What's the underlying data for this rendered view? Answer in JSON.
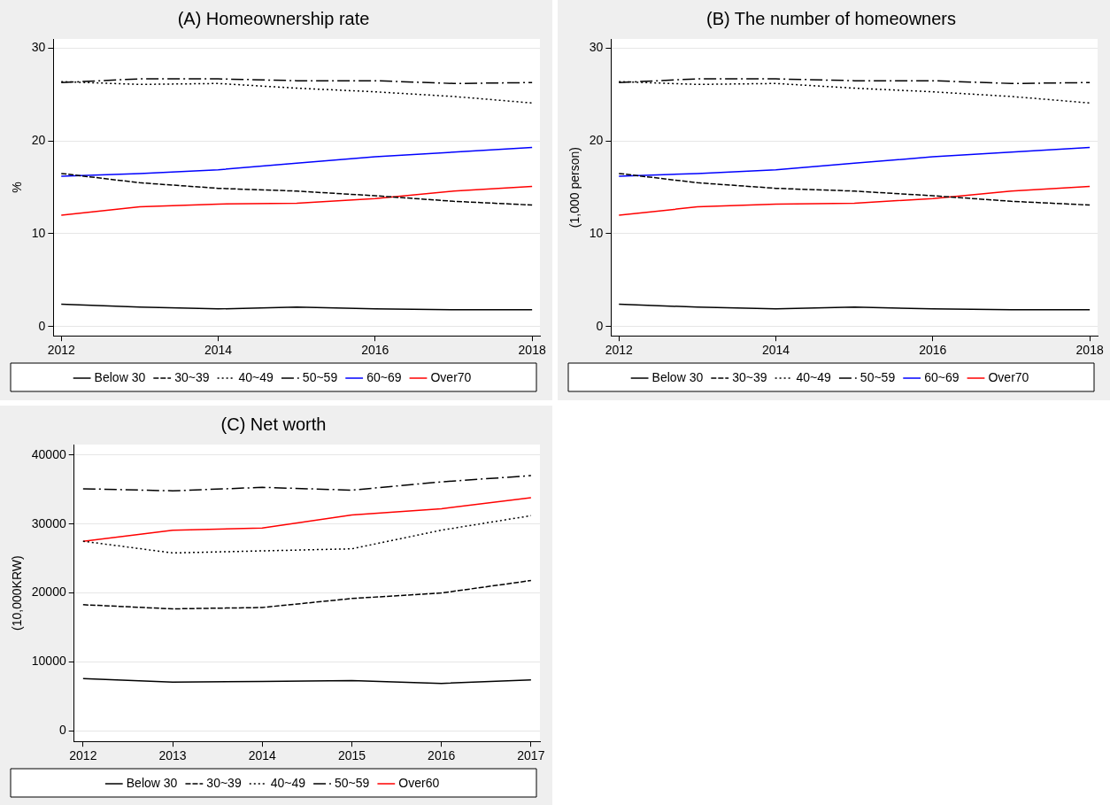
{
  "chart_data": [
    {
      "type": "line",
      "title": "(A) Homeownership rate",
      "ylabel": "%",
      "x": [
        2012,
        2013,
        2014,
        2015,
        2016,
        2017,
        2018
      ],
      "xlim": [
        2011.9,
        2018.1
      ],
      "xticks": [
        2012,
        2014,
        2016,
        2018
      ],
      "ylim": [
        -1,
        31
      ],
      "yticks": [
        0,
        10,
        20,
        30
      ],
      "grid": "y",
      "legend": "bottom",
      "marker": "none",
      "series": [
        {
          "name": "Below 30",
          "color": "#000000",
          "line_style": "solid",
          "values": [
            2.4,
            2.1,
            1.9,
            2.1,
            1.9,
            1.8,
            1.8
          ]
        },
        {
          "name": "30~39",
          "color": "#000000",
          "line_style": "dashed",
          "values": [
            16.5,
            15.5,
            14.9,
            14.6,
            14.1,
            13.5,
            13.1
          ]
        },
        {
          "name": "40~49",
          "color": "#000000",
          "line_style": "dotted",
          "values": [
            26.4,
            26.1,
            26.2,
            25.7,
            25.3,
            24.8,
            24.1
          ]
        },
        {
          "name": "50~59",
          "color": "#000000",
          "line_style": "dashdot",
          "values": [
            26.3,
            26.7,
            26.7,
            26.5,
            26.5,
            26.2,
            26.3
          ]
        },
        {
          "name": "60~69",
          "color": "#0000ff",
          "line_style": "solid",
          "values": [
            16.2,
            16.5,
            16.9,
            17.6,
            18.3,
            18.8,
            19.3
          ]
        },
        {
          "name": "Over70",
          "color": "#ff0000",
          "line_style": "solid",
          "values": [
            12.0,
            12.9,
            13.2,
            13.3,
            13.8,
            14.6,
            15.1
          ]
        }
      ]
    },
    {
      "type": "line",
      "title": "(B) The number of homeowners",
      "ylabel": "(1,000 person)",
      "x": [
        2012,
        2013,
        2014,
        2015,
        2016,
        2017,
        2018
      ],
      "xlim": [
        2011.9,
        2018.1
      ],
      "xticks": [
        2012,
        2014,
        2016,
        2018
      ],
      "ylim": [
        -1,
        31
      ],
      "yticks": [
        0,
        10,
        20,
        30
      ],
      "grid": "y",
      "legend": "bottom",
      "marker": "none",
      "series": [
        {
          "name": "Below 30",
          "color": "#000000",
          "line_style": "solid",
          "values": [
            2.4,
            2.1,
            1.9,
            2.1,
            1.9,
            1.8,
            1.8
          ]
        },
        {
          "name": "30~39",
          "color": "#000000",
          "line_style": "dashed",
          "values": [
            16.5,
            15.5,
            14.9,
            14.6,
            14.1,
            13.5,
            13.1
          ]
        },
        {
          "name": "40~49",
          "color": "#000000",
          "line_style": "dotted",
          "values": [
            26.4,
            26.1,
            26.2,
            25.7,
            25.3,
            24.8,
            24.1
          ]
        },
        {
          "name": "50~59",
          "color": "#000000",
          "line_style": "dashdot",
          "values": [
            26.3,
            26.7,
            26.7,
            26.5,
            26.5,
            26.2,
            26.3
          ]
        },
        {
          "name": "60~69",
          "color": "#0000ff",
          "line_style": "solid",
          "values": [
            16.2,
            16.5,
            16.9,
            17.6,
            18.3,
            18.8,
            19.3
          ]
        },
        {
          "name": "Over70",
          "color": "#ff0000",
          "line_style": "solid",
          "values": [
            12.0,
            12.9,
            13.2,
            13.3,
            13.8,
            14.6,
            15.1
          ]
        }
      ]
    },
    {
      "type": "line",
      "title": "(C) Net worth",
      "ylabel": "(10,000KRW)",
      "x": [
        2012,
        2013,
        2014,
        2015,
        2016,
        2017
      ],
      "xlim": [
        2011.9,
        2017.1
      ],
      "xticks": [
        2012,
        2013,
        2014,
        2015,
        2016,
        2017
      ],
      "ylim": [
        -1500,
        41500
      ],
      "yticks": [
        0,
        10000,
        20000,
        30000,
        40000
      ],
      "grid": "y",
      "legend": "bottom",
      "marker": "none",
      "series": [
        {
          "name": "Below 30",
          "color": "#000000",
          "line_style": "solid",
          "values": [
            7600,
            7100,
            7200,
            7300,
            6900,
            7400
          ]
        },
        {
          "name": "30~39",
          "color": "#000000",
          "line_style": "dashed",
          "values": [
            18300,
            17700,
            17900,
            19200,
            20000,
            21800
          ]
        },
        {
          "name": "40~49",
          "color": "#000000",
          "line_style": "dotted",
          "values": [
            27500,
            25800,
            26100,
            26400,
            29100,
            31200
          ]
        },
        {
          "name": "50~59",
          "color": "#000000",
          "line_style": "dashdot",
          "values": [
            35100,
            34800,
            35300,
            34900,
            36100,
            37000
          ]
        },
        {
          "name": "Over60",
          "color": "#ff0000",
          "line_style": "solid",
          "values": [
            27500,
            29100,
            29400,
            31300,
            32200,
            33800
          ]
        }
      ]
    }
  ]
}
